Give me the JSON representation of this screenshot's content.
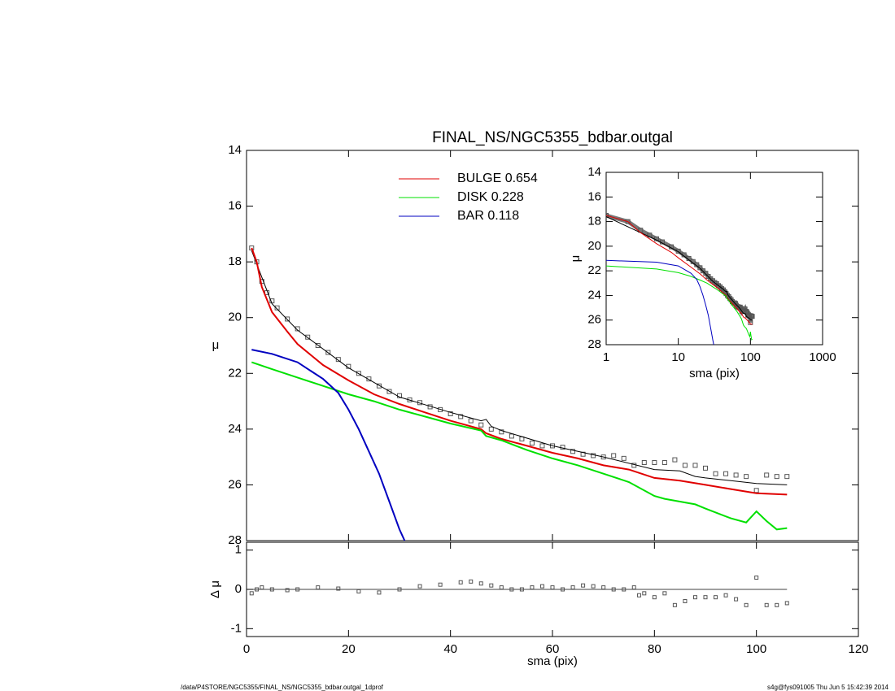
{
  "chart_data": [
    {
      "type": "line",
      "title": "FINAL_NS/NGC5355_bdbar.outgal",
      "ylabel": "μ",
      "xlim": [
        0,
        120
      ],
      "xticks": [
        0,
        20,
        40,
        60,
        80,
        100,
        120
      ],
      "ylim": [
        28,
        14
      ],
      "yticks": [
        14,
        16,
        18,
        20,
        22,
        24,
        26,
        28
      ],
      "series": [
        {
          "color": "#555555",
          "marker": "square",
          "x": [
            1,
            2,
            3,
            4,
            5,
            6,
            8,
            10,
            12,
            14,
            16,
            18,
            20,
            22,
            24,
            26,
            28,
            30,
            32,
            34,
            36,
            38,
            40,
            42,
            44,
            46,
            48,
            50,
            52,
            54,
            56,
            58,
            60,
            62,
            64,
            66,
            68,
            70,
            72,
            74,
            76,
            78,
            80,
            82,
            84,
            86,
            88,
            90,
            92,
            94,
            96,
            98,
            100,
            102,
            104,
            106
          ],
          "values": [
            17.5,
            18.0,
            18.7,
            19.1,
            19.4,
            19.65,
            20.05,
            20.4,
            20.7,
            21.0,
            21.25,
            21.5,
            21.75,
            22.0,
            22.2,
            22.45,
            22.65,
            22.8,
            22.95,
            23.05,
            23.2,
            23.3,
            23.45,
            23.55,
            23.7,
            23.85,
            24.0,
            24.1,
            24.25,
            24.35,
            24.5,
            24.6,
            24.6,
            24.65,
            24.8,
            24.9,
            24.95,
            25.0,
            24.95,
            25.05,
            25.3,
            25.2,
            25.2,
            25.2,
            25.1,
            25.3,
            25.3,
            25.4,
            25.6,
            25.6,
            25.65,
            25.7,
            26.2,
            25.65,
            25.7,
            25.7
          ]
        },
        {
          "color": "#000000",
          "line_width": 1,
          "x": [
            1,
            5,
            10,
            20,
            30,
            40,
            46,
            47,
            48,
            50,
            60,
            70,
            80,
            85,
            88,
            90,
            95,
            100,
            106
          ],
          "values": [
            17.6,
            19.5,
            20.45,
            21.8,
            22.85,
            23.4,
            23.7,
            23.65,
            23.9,
            24.05,
            24.6,
            25.0,
            25.45,
            25.5,
            25.7,
            25.75,
            25.85,
            25.95,
            26.0
          ]
        },
        {
          "name": "BULGE  0.654",
          "color": "#e00000",
          "line_width": 2,
          "x": [
            1,
            2,
            3,
            5,
            8,
            10,
            15,
            20,
            25,
            30,
            35,
            40,
            46,
            47,
            50,
            55,
            60,
            65,
            70,
            75,
            80,
            85,
            90,
            95,
            100,
            106
          ],
          "values": [
            17.5,
            18.0,
            18.9,
            19.8,
            20.5,
            20.95,
            21.7,
            22.25,
            22.75,
            23.1,
            23.4,
            23.7,
            24.0,
            24.15,
            24.35,
            24.6,
            24.85,
            25.05,
            25.3,
            25.45,
            25.75,
            25.85,
            26.0,
            26.15,
            26.3,
            26.35
          ]
        },
        {
          "name": "DISK  0.228",
          "color": "#00e000",
          "line_width": 2,
          "x": [
            1,
            5,
            10,
            15,
            20,
            25,
            30,
            35,
            40,
            46,
            47,
            50,
            55,
            60,
            65,
            70,
            75,
            80,
            82,
            85,
            88,
            90,
            95,
            98,
            100,
            102,
            104,
            106
          ],
          "values": [
            21.6,
            21.85,
            22.15,
            22.45,
            22.75,
            23.0,
            23.3,
            23.55,
            23.8,
            24.05,
            24.25,
            24.4,
            24.75,
            25.05,
            25.3,
            25.6,
            25.9,
            26.4,
            26.5,
            26.6,
            26.7,
            26.85,
            27.2,
            27.35,
            26.95,
            27.3,
            27.6,
            27.55
          ]
        },
        {
          "name": "BAR  0.118",
          "color": "#0000c0",
          "line_width": 2,
          "x": [
            1,
            5,
            10,
            15,
            18,
            20,
            22,
            24,
            26,
            28,
            30,
            31
          ],
          "values": [
            21.15,
            21.3,
            21.6,
            22.2,
            22.7,
            23.3,
            24.0,
            24.8,
            25.6,
            26.6,
            27.6,
            28.0
          ]
        }
      ]
    },
    {
      "type": "scatter",
      "xlabel": "sma (pix)",
      "ylabel": "Δ μ",
      "xlim": [
        0,
        120
      ],
      "xticks": [
        0,
        20,
        40,
        60,
        80,
        100,
        120
      ],
      "ylim": [
        -1.2,
        1.2
      ],
      "yticks": [
        1,
        0,
        -1
      ],
      "color": "#555555",
      "x": [
        1,
        2,
        3,
        5,
        8,
        10,
        14,
        18,
        22,
        26,
        30,
        34,
        38,
        42,
        44,
        46,
        48,
        50,
        52,
        54,
        56,
        58,
        60,
        62,
        64,
        66,
        68,
        70,
        72,
        74,
        76,
        77,
        78,
        80,
        82,
        84,
        86,
        88,
        90,
        92,
        94,
        96,
        98,
        100,
        102,
        104,
        106
      ],
      "values": [
        -0.1,
        0.0,
        0.05,
        0.0,
        -0.02,
        0.0,
        0.05,
        0.02,
        -0.05,
        -0.08,
        0.0,
        0.08,
        0.12,
        0.18,
        0.2,
        0.15,
        0.1,
        0.05,
        0.0,
        0.0,
        0.05,
        0.08,
        0.05,
        0.0,
        0.05,
        0.1,
        0.08,
        0.05,
        0.0,
        0.0,
        0.05,
        -0.15,
        -0.1,
        -0.2,
        -0.1,
        -0.4,
        -0.3,
        -0.2,
        -0.2,
        -0.2,
        -0.15,
        -0.25,
        -0.4,
        0.3,
        -0.4,
        -0.4,
        -0.35
      ]
    },
    {
      "type": "line",
      "log_x": true,
      "xlabel": "sma (pix)",
      "ylabel": "μ",
      "xlim": [
        1,
        1000
      ],
      "xticks": [
        1,
        10,
        100,
        1000
      ],
      "ylim": [
        28,
        14
      ],
      "yticks": [
        14,
        16,
        18,
        20,
        22,
        24,
        26,
        28
      ]
    }
  ],
  "footer": {
    "left": "/data/P4STORE/NGC5355/FINAL_NS/NGC5355_bdbar.outgal_1dprof",
    "right": "s4g@fys091005  Thu Jun  5 15:42:39 2014"
  }
}
